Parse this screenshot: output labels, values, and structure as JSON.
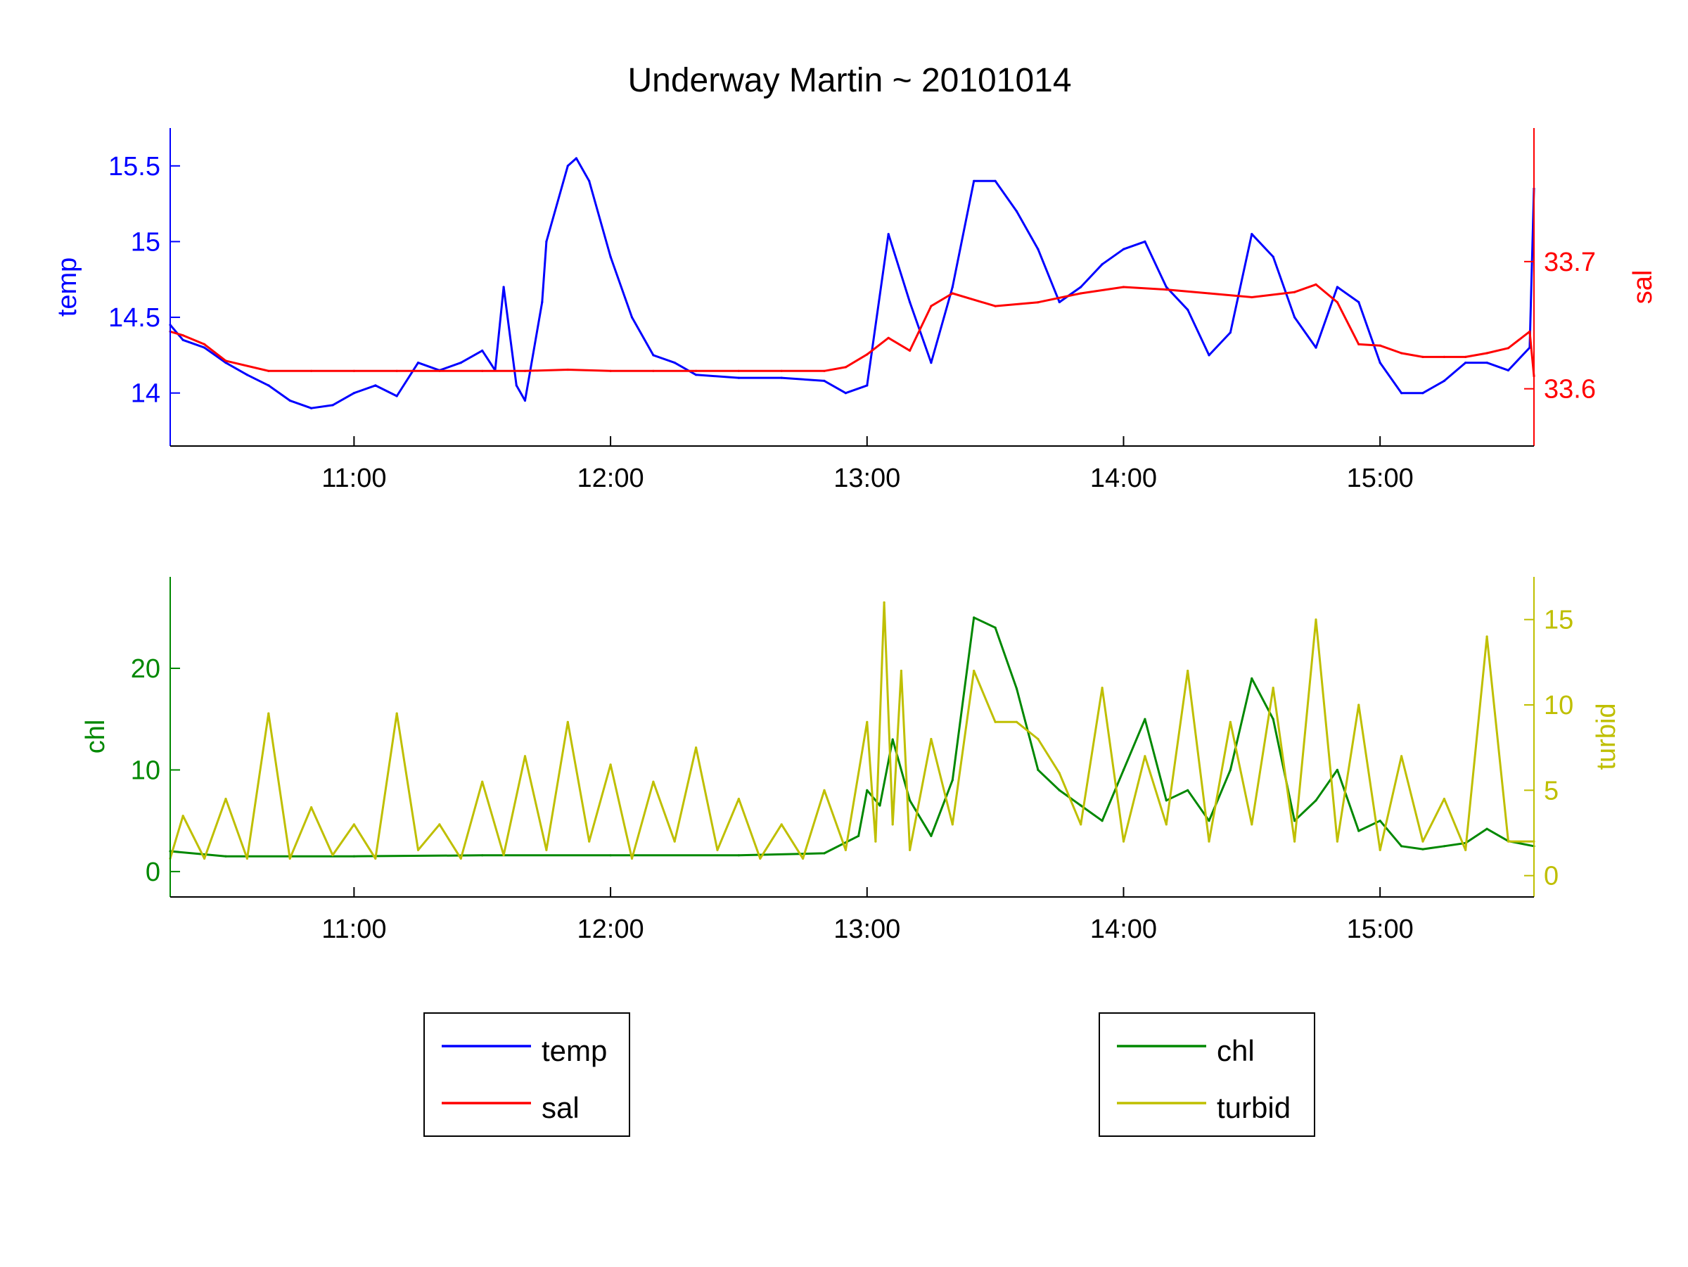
{
  "colors": {
    "temp": "#0000ff",
    "sal": "#ff0000",
    "chl": "#008800",
    "turbid": "#bfbf00",
    "axis": "#000000"
  },
  "chart_data": {
    "title": "Underway Martin ~ 20101014",
    "x_unit": "time",
    "x_range": [
      "10:17",
      "15:36"
    ],
    "x_ticks": [
      "11:00",
      "12:00",
      "13:00",
      "14:00",
      "15:00"
    ],
    "top_panel": {
      "type": "line",
      "grid": false,
      "left_axis": {
        "label": "temp",
        "ylim": [
          13.65,
          15.75
        ],
        "ticks": [
          "14",
          "14.5",
          "15",
          "15.5"
        ]
      },
      "right_axis": {
        "label": "sal",
        "ylim": [
          33.555,
          33.805
        ],
        "ticks": [
          "33.6",
          "33.7"
        ]
      },
      "series": [
        {
          "name": "temp",
          "axis": "left",
          "x": [
            "10:17",
            "10:20",
            "10:25",
            "10:30",
            "10:35",
            "10:40",
            "10:45",
            "10:50",
            "10:55",
            "11:00",
            "11:05",
            "11:10",
            "11:15",
            "11:20",
            "11:25",
            "11:30",
            "11:33",
            "11:35",
            "11:38",
            "11:40",
            "11:44",
            "11:45",
            "11:50",
            "11:52",
            "11:55",
            "12:00",
            "12:05",
            "12:10",
            "12:15",
            "12:20",
            "12:30",
            "12:40",
            "12:50",
            "12:55",
            "13:00",
            "13:05",
            "13:10",
            "13:15",
            "13:20",
            "13:25",
            "13:30",
            "13:35",
            "13:40",
            "13:45",
            "13:50",
            "13:55",
            "14:00",
            "14:05",
            "14:10",
            "14:15",
            "14:20",
            "14:25",
            "14:30",
            "14:35",
            "14:40",
            "14:45",
            "14:50",
            "14:55",
            "15:00",
            "15:05",
            "15:10",
            "15:15",
            "15:20",
            "15:25",
            "15:30",
            "15:35",
            "15:36"
          ],
          "y": [
            14.45,
            14.35,
            14.3,
            14.2,
            14.12,
            14.05,
            13.95,
            13.9,
            13.92,
            14.0,
            14.05,
            13.98,
            14.2,
            14.15,
            14.2,
            14.28,
            14.15,
            14.7,
            14.05,
            13.95,
            14.6,
            15.0,
            15.5,
            15.55,
            15.4,
            14.9,
            14.5,
            14.25,
            14.2,
            14.12,
            14.1,
            14.1,
            14.08,
            14.0,
            14.05,
            15.05,
            14.6,
            14.2,
            14.7,
            15.4,
            15.4,
            15.2,
            14.95,
            14.6,
            14.7,
            14.85,
            14.95,
            15.0,
            14.7,
            14.55,
            14.25,
            14.4,
            15.05,
            14.9,
            14.5,
            14.3,
            14.7,
            14.6,
            14.2,
            14.0,
            14.0,
            14.08,
            14.2,
            14.2,
            14.15,
            14.3,
            15.35
          ]
        },
        {
          "name": "sal",
          "axis": "right",
          "x": [
            "10:17",
            "10:20",
            "10:25",
            "10:30",
            "10:40",
            "10:50",
            "11:00",
            "11:10",
            "11:20",
            "11:30",
            "11:40",
            "11:50",
            "12:00",
            "12:10",
            "12:20",
            "12:30",
            "12:40",
            "12:50",
            "12:55",
            "13:00",
            "13:05",
            "13:10",
            "13:15",
            "13:20",
            "13:30",
            "13:40",
            "13:50",
            "14:00",
            "14:10",
            "14:20",
            "14:30",
            "14:40",
            "14:45",
            "14:50",
            "14:55",
            "15:00",
            "15:05",
            "15:10",
            "15:15",
            "15:20",
            "15:25",
            "15:30",
            "15:35",
            "15:36"
          ],
          "y": [
            33.645,
            33.642,
            33.635,
            33.622,
            33.614,
            33.614,
            33.614,
            33.614,
            33.614,
            33.614,
            33.614,
            33.615,
            33.614,
            33.614,
            33.614,
            33.614,
            33.614,
            33.614,
            33.617,
            33.627,
            33.64,
            33.63,
            33.665,
            33.675,
            33.665,
            33.668,
            33.675,
            33.68,
            33.678,
            33.675,
            33.672,
            33.676,
            33.682,
            33.668,
            33.635,
            33.634,
            33.628,
            33.625,
            33.625,
            33.625,
            33.628,
            33.632,
            33.645,
            33.61
          ]
        }
      ]
    },
    "bottom_panel": {
      "type": "line",
      "grid": false,
      "left_axis": {
        "label": "chl",
        "ylim": [
          -2.5,
          29
        ],
        "ticks": [
          "0",
          "10",
          "20"
        ]
      },
      "right_axis": {
        "label": "turbid",
        "ylim": [
          -1.25,
          17.5
        ],
        "ticks": [
          "0",
          "5",
          "10",
          "15"
        ]
      },
      "series": [
        {
          "name": "chl",
          "axis": "left",
          "x": [
            "10:17",
            "10:30",
            "10:45",
            "11:00",
            "11:30",
            "12:00",
            "12:30",
            "12:50",
            "12:58",
            "13:00",
            "13:03",
            "13:06",
            "13:10",
            "13:15",
            "13:20",
            "13:25",
            "13:30",
            "13:35",
            "13:40",
            "13:45",
            "13:50",
            "13:55",
            "14:00",
            "14:05",
            "14:10",
            "14:15",
            "14:20",
            "14:25",
            "14:30",
            "14:35",
            "14:40",
            "14:45",
            "14:50",
            "14:55",
            "15:00",
            "15:05",
            "15:10",
            "15:15",
            "15:20",
            "15:25",
            "15:30",
            "15:36"
          ],
          "y": [
            2.0,
            1.5,
            1.5,
            1.5,
            1.6,
            1.6,
            1.6,
            1.8,
            3.5,
            8.0,
            6.5,
            13.0,
            7.0,
            3.5,
            9.0,
            25.0,
            24.0,
            18.0,
            10.0,
            8.0,
            6.5,
            5.0,
            10.0,
            15.0,
            7.0,
            8.0,
            5.0,
            10.0,
            19.0,
            15.0,
            5.0,
            7.0,
            10.0,
            4.0,
            5.0,
            2.5,
            2.2,
            2.5,
            2.8,
            4.2,
            3.0,
            2.5
          ]
        },
        {
          "name": "turbid",
          "axis": "right",
          "x": [
            "10:17",
            "10:20",
            "10:25",
            "10:30",
            "10:35",
            "10:40",
            "10:45",
            "10:50",
            "10:55",
            "11:00",
            "11:05",
            "11:10",
            "11:15",
            "11:20",
            "11:25",
            "11:30",
            "11:35",
            "11:40",
            "11:45",
            "11:50",
            "11:55",
            "12:00",
            "12:05",
            "12:10",
            "12:15",
            "12:20",
            "12:25",
            "12:30",
            "12:35",
            "12:40",
            "12:45",
            "12:50",
            "12:55",
            "13:00",
            "13:02",
            "13:04",
            "13:06",
            "13:08",
            "13:10",
            "13:15",
            "13:20",
            "13:25",
            "13:30",
            "13:35",
            "13:40",
            "13:45",
            "13:50",
            "13:55",
            "14:00",
            "14:05",
            "14:10",
            "14:15",
            "14:20",
            "14:25",
            "14:30",
            "14:35",
            "14:40",
            "14:45",
            "14:50",
            "14:55",
            "15:00",
            "15:05",
            "15:10",
            "15:15",
            "15:20",
            "15:25",
            "15:30",
            "15:36"
          ],
          "y": [
            1.0,
            3.5,
            1.0,
            4.5,
            1.0,
            9.5,
            1.0,
            4.0,
            1.2,
            3.0,
            1.0,
            9.5,
            1.5,
            3.0,
            1.0,
            5.5,
            1.2,
            7.0,
            1.5,
            9.0,
            2.0,
            6.5,
            1.0,
            5.5,
            2.0,
            7.5,
            1.5,
            4.5,
            1.0,
            3.0,
            1.0,
            5.0,
            1.5,
            9.0,
            2.0,
            16.0,
            3.0,
            12.0,
            1.5,
            8.0,
            3.0,
            12.0,
            9.0,
            9.0,
            8.0,
            6.0,
            3.0,
            11.0,
            2.0,
            7.0,
            3.0,
            12.0,
            2.0,
            9.0,
            3.0,
            11.0,
            2.0,
            15.0,
            2.0,
            10.0,
            1.5,
            7.0,
            2.0,
            4.5,
            1.5,
            14.0,
            2.0,
            2.0
          ]
        }
      ]
    },
    "legends": [
      {
        "entries": [
          "temp",
          "sal"
        ]
      },
      {
        "entries": [
          "chl",
          "turbid"
        ]
      }
    ]
  }
}
